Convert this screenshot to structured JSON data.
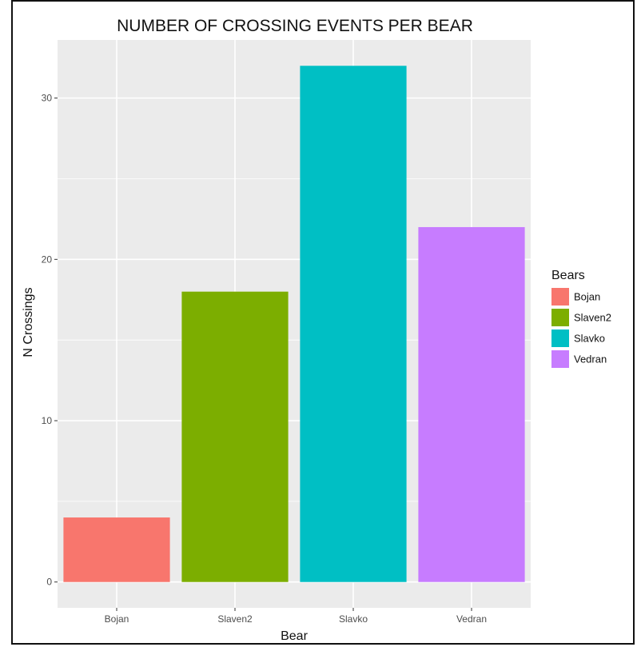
{
  "chart_data": {
    "type": "bar",
    "title": "NUMBER OF CROSSING EVENTS PER BEAR",
    "xlabel": "Bear",
    "ylabel": "N Crossings",
    "categories": [
      "Bojan",
      "Slaven2",
      "Slavko",
      "Vedran"
    ],
    "values": [
      4,
      18,
      32,
      22
    ],
    "colors": [
      "#F8766D",
      "#7CAE00",
      "#00BFC4",
      "#C77CFF"
    ],
    "ylim": [
      -1.6,
      33.6
    ],
    "yticks": [
      0,
      10,
      20,
      30
    ],
    "grid": true,
    "panel_background": "#EBEBEB",
    "legend": {
      "title": "Bears",
      "entries": [
        "Bojan",
        "Slaven2",
        "Slavko",
        "Vedran"
      ],
      "placement": "right"
    }
  }
}
